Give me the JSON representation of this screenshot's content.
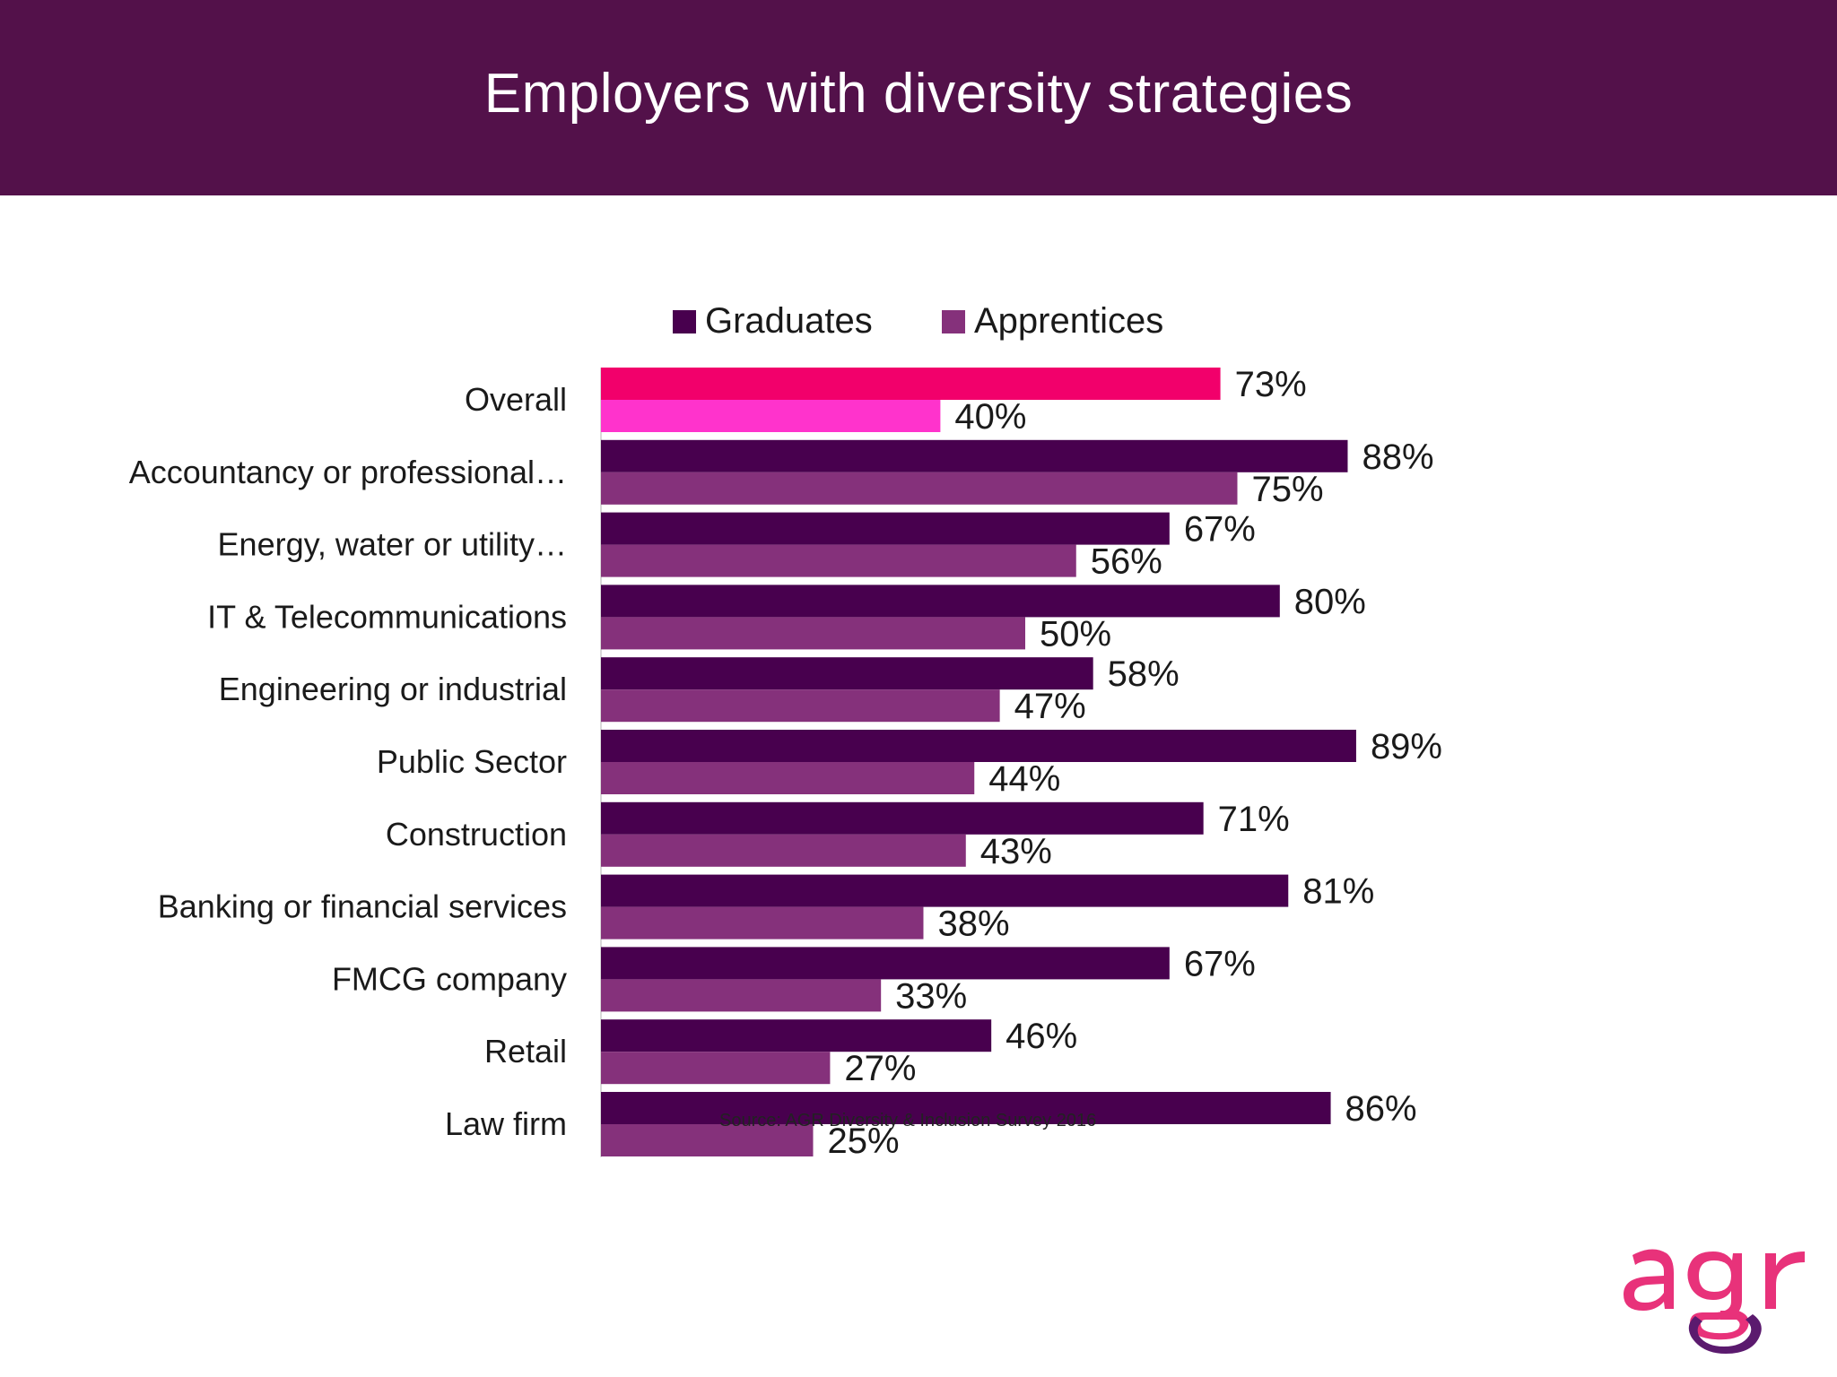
{
  "slide": {
    "title": "Employers with diversity strategies",
    "source": "Source: AGR Diversity & Inclusion Survey 2016",
    "logo_text": "agr"
  },
  "colors": {
    "header_bg": "#53114a",
    "graduates": "#48004e",
    "apprentices": "#85317b",
    "overall_graduates": "#f2006b",
    "overall_apprentices": "#ff33cc",
    "logo_pink": "#e8327a",
    "logo_purple": "#5b1a6e"
  },
  "chart_data": {
    "type": "bar",
    "orientation": "horizontal",
    "categories": [
      "Overall",
      "Accountancy or professional…",
      "Energy, water or utility…",
      "IT & Telecommunications",
      "Engineering or industrial",
      "Public Sector",
      "Construction",
      "Banking or financial services",
      "FMCG company",
      "Retail",
      "Law firm"
    ],
    "series": [
      {
        "name": "Graduates",
        "values": [
          73,
          88,
          67,
          80,
          58,
          89,
          71,
          81,
          67,
          46,
          86
        ],
        "labels": [
          "73%",
          "88%",
          "67%",
          "80%",
          "58%",
          "89%",
          "71%",
          "81%",
          "67%",
          "46%",
          "86%"
        ]
      },
      {
        "name": "Apprentices",
        "values": [
          40,
          75,
          56,
          50,
          47,
          44,
          43,
          38,
          33,
          27,
          25
        ],
        "labels": [
          "40%",
          "75%",
          "56%",
          "50%",
          "47%",
          "44%",
          "43%",
          "38%",
          "33%",
          "27%",
          "25%"
        ]
      }
    ],
    "xlim": [
      0,
      100
    ],
    "legend": "top",
    "grid": false,
    "highlight_category": "Overall"
  }
}
